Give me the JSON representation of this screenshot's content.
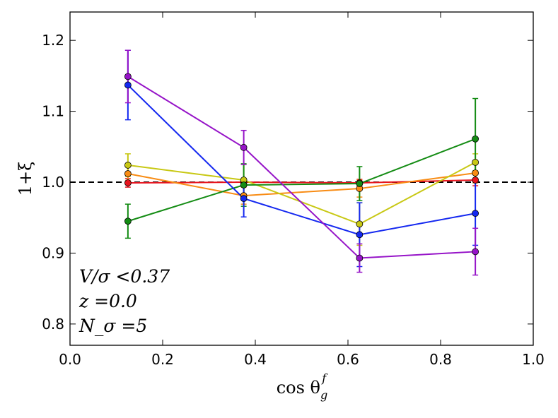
{
  "chart_data": {
    "type": "line",
    "title": "",
    "xlabel": "cos θ",
    "xlabel_sub": "g",
    "xlabel_sup": "f",
    "ylabel": "1+ξ",
    "xlim": [
      0.0,
      1.0
    ],
    "ylim": [
      0.77,
      1.24
    ],
    "xticks": [
      0.0,
      0.2,
      0.4,
      0.6,
      0.8,
      1.0
    ],
    "xtick_labels": [
      "0.0",
      "0.2",
      "0.4",
      "0.6",
      "0.8",
      "1.0"
    ],
    "yticks": [
      0.8,
      0.9,
      1.0,
      1.1,
      1.2
    ],
    "ytick_labels": [
      "0.8",
      "0.9",
      "1.0",
      "1.1",
      "1.2"
    ],
    "x": [
      0.125,
      0.375,
      0.625,
      0.875
    ],
    "reference_line": {
      "y": 1.0,
      "style": "dashed",
      "color": "#000000"
    },
    "annotations": [
      "V/σ <0.37",
      "z =0.0",
      "N_σ =5"
    ],
    "series": [
      {
        "name": "red",
        "color": "#e8141e",
        "values": [
          0.999,
          1.0,
          0.999,
          1.003
        ],
        "errors": [
          0.006,
          0.004,
          0.005,
          0.008
        ]
      },
      {
        "name": "orange",
        "color": "#f88c14",
        "values": [
          1.012,
          0.981,
          0.991,
          1.013
        ],
        "errors": [
          0.01,
          0.012,
          0.012,
          0.014
        ]
      },
      {
        "name": "yellow",
        "color": "#c8c814",
        "values": [
          1.024,
          1.003,
          0.941,
          1.028
        ],
        "errors": [
          0.016,
          0.022,
          0.03,
          0.012
        ]
      },
      {
        "name": "green",
        "color": "#148c14",
        "values": [
          0.945,
          0.996,
          0.998,
          1.061
        ],
        "errors": [
          0.024,
          0.03,
          0.024,
          0.057
        ]
      },
      {
        "name": "blue",
        "color": "#1428f0",
        "values": [
          1.137,
          0.977,
          0.926,
          0.956
        ],
        "errors": [
          0.049,
          0.026,
          0.045,
          0.045
        ]
      },
      {
        "name": "purple",
        "color": "#9614c8",
        "values": [
          1.149,
          1.049,
          0.893,
          0.902
        ],
        "errors": [
          0.037,
          0.024,
          0.02,
          0.033
        ]
      }
    ]
  }
}
